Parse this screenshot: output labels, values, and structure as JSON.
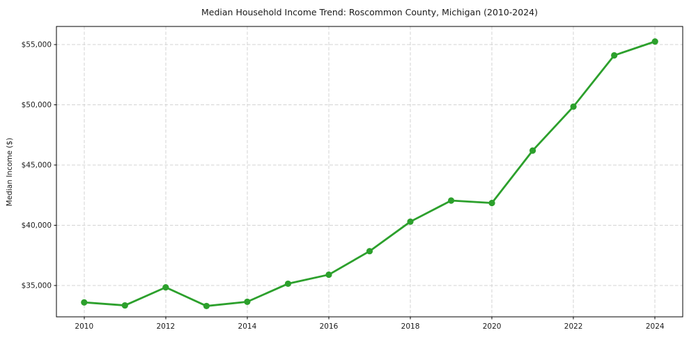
{
  "page": {
    "background": "#ffffff"
  },
  "chart_data": {
    "type": "line",
    "title": "Median Household Income Trend: Roscommon County, Michigan (2010-2024)",
    "xlabel": "",
    "ylabel": "Median Income ($)",
    "x": [
      2010,
      2011,
      2012,
      2013,
      2014,
      2015,
      2016,
      2017,
      2018,
      2019,
      2020,
      2021,
      2022,
      2023,
      2024
    ],
    "values": [
      33600,
      33350,
      34850,
      33300,
      33650,
      35150,
      35900,
      37850,
      40300,
      42050,
      41850,
      46200,
      49850,
      54100,
      55250
    ],
    "series_name": "Median Household Income",
    "x_ticks": [
      2010,
      2012,
      2014,
      2016,
      2018,
      2020,
      2022,
      2024
    ],
    "x_tick_labels": [
      "2010",
      "2012",
      "2014",
      "2016",
      "2018",
      "2020",
      "2022",
      "2024"
    ],
    "y_ticks": [
      35000,
      40000,
      45000,
      50000,
      55000
    ],
    "y_tick_labels": [
      "$35,000",
      "$40,000",
      "$45,000",
      "$50,000",
      "$55,000"
    ],
    "xlim": [
      2009.32,
      2024.68
    ],
    "ylim": [
      32400,
      56500
    ],
    "grid": true,
    "grid_style": "dashed",
    "grid_color": "#d3d3d3",
    "legend_position": "none",
    "line_color": "#2ca02c",
    "marker": "circle",
    "axis_color": "#000000",
    "text_color": "#1a1a1a",
    "plot_background": "#ffffff"
  }
}
